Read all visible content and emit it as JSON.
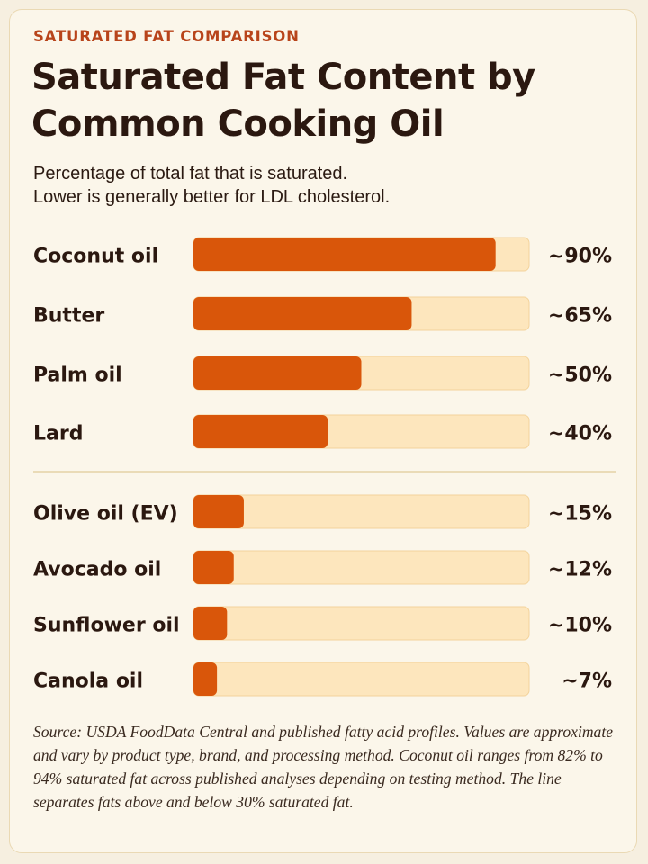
{
  "header": {
    "eyebrow": "SATURATED FAT COMPARISON",
    "title": "Saturated Fat Content by Common Cooking Oil",
    "subtitle_line1": "Percentage of total fat that is saturated.",
    "subtitle_line2": "Lower is generally better for LDL cholesterol."
  },
  "colors": {
    "bar_fill": "#d9560a",
    "track": "#fde6bd",
    "accent": "#b8441b",
    "divider": "#e5d2a6"
  },
  "chart_data": {
    "type": "bar",
    "orientation": "horizontal",
    "categories": [
      "Coconut oil",
      "Butter",
      "Palm oil",
      "Lard",
      "Olive oil (EV)",
      "Avocado oil",
      "Sunflower oil",
      "Canola oil"
    ],
    "values": [
      90,
      65,
      50,
      40,
      15,
      12,
      10,
      7
    ],
    "value_labels": [
      "~90%",
      "~65%",
      "~50%",
      "~40%",
      "~15%",
      "~12%",
      "~10%",
      "~7%"
    ],
    "xlim": [
      0,
      100
    ],
    "unit": "%",
    "divider_after_index": 3,
    "divider_threshold": 30
  },
  "footer": {
    "source": "Source: USDA FoodData Central and published fatty acid profiles. Values are approximate and vary by product type, brand, and processing method. Coconut oil ranges from 82% to 94% saturated fat across published analyses depending on testing method. The line separates fats above and below 30% saturated fat."
  }
}
